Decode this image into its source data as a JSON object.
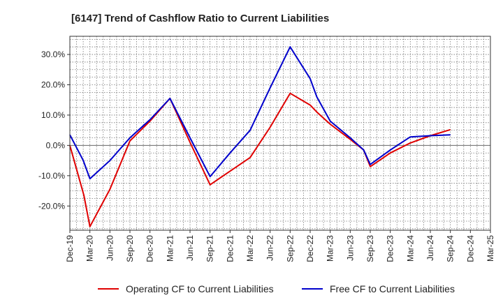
{
  "chart_data": {
    "type": "line",
    "title": "[6147]  Trend of Cashflow Ratio to Current Liabilities",
    "xlabel": "",
    "ylabel": "",
    "x_tick_labels": [
      "Dec-19",
      "Mar-20",
      "Jun-20",
      "Sep-20",
      "Dec-20",
      "Mar-21",
      "Jun-21",
      "Sep-21",
      "Dec-21",
      "Mar-22",
      "Jun-22",
      "Sep-22",
      "Dec-22",
      "Mar-23",
      "Jun-23",
      "Sep-23",
      "Dec-23",
      "Mar-24",
      "Jun-24",
      "Sep-24",
      "Dec-24",
      "Mar-25"
    ],
    "y_ticks": [
      -20,
      -10,
      0,
      10,
      20,
      30
    ],
    "y_tick_labels": [
      "-20.0%",
      "-10.0%",
      "0.0%",
      "10.0%",
      "20.0%",
      "30.0%"
    ],
    "ylim": [
      -28,
      36
    ],
    "grid": true,
    "legend_position": "bottom",
    "series": [
      {
        "name": "Operating CF to Current Liabilities",
        "color": "#e00000",
        "points": [
          {
            "x": 0,
            "y": 0.0
          },
          {
            "x": 0.7,
            "y": -16.5
          },
          {
            "x": 1,
            "y": -26.8
          },
          {
            "x": 2,
            "y": -14.5
          },
          {
            "x": 3,
            "y": 1.5
          },
          {
            "x": 4,
            "y": 8.0
          },
          {
            "x": 5,
            "y": 15.5
          },
          {
            "x": 6,
            "y": 1.0
          },
          {
            "x": 7,
            "y": -13.0
          },
          {
            "x": 8,
            "y": -8.5
          },
          {
            "x": 9,
            "y": -4.0
          },
          {
            "x": 10,
            "y": 6.0
          },
          {
            "x": 11,
            "y": 17.2
          },
          {
            "x": 12,
            "y": 13.3
          },
          {
            "x": 12.33,
            "y": 11.0
          },
          {
            "x": 13,
            "y": 7.0
          },
          {
            "x": 14,
            "y": 2.0
          },
          {
            "x": 14.67,
            "y": -1.5
          },
          {
            "x": 15,
            "y": -7.0
          },
          {
            "x": 16,
            "y": -2.5
          },
          {
            "x": 17,
            "y": 0.8
          },
          {
            "x": 18,
            "y": 3.2
          },
          {
            "x": 19,
            "y": 5.2
          }
        ]
      },
      {
        "name": "Free CF to Current Liabilities",
        "color": "#0000cc",
        "points": [
          {
            "x": 0,
            "y": 3.5
          },
          {
            "x": 0.67,
            "y": -5.0
          },
          {
            "x": 1,
            "y": -11.0
          },
          {
            "x": 2,
            "y": -5.0
          },
          {
            "x": 3,
            "y": 2.5
          },
          {
            "x": 4,
            "y": 8.5
          },
          {
            "x": 5,
            "y": 15.5
          },
          {
            "x": 6,
            "y": 2.5
          },
          {
            "x": 7,
            "y": -10.3
          },
          {
            "x": 8,
            "y": -2.5
          },
          {
            "x": 9,
            "y": 5.0
          },
          {
            "x": 10,
            "y": 19.0
          },
          {
            "x": 11,
            "y": 32.5
          },
          {
            "x": 12,
            "y": 22.0
          },
          {
            "x": 12.33,
            "y": 16.0
          },
          {
            "x": 13,
            "y": 8.0
          },
          {
            "x": 14,
            "y": 2.5
          },
          {
            "x": 14.67,
            "y": -1.5
          },
          {
            "x": 15,
            "y": -6.3
          },
          {
            "x": 16,
            "y": -1.5
          },
          {
            "x": 17,
            "y": 2.8
          },
          {
            "x": 18,
            "y": 3.2
          },
          {
            "x": 19,
            "y": 3.5
          }
        ]
      }
    ]
  }
}
